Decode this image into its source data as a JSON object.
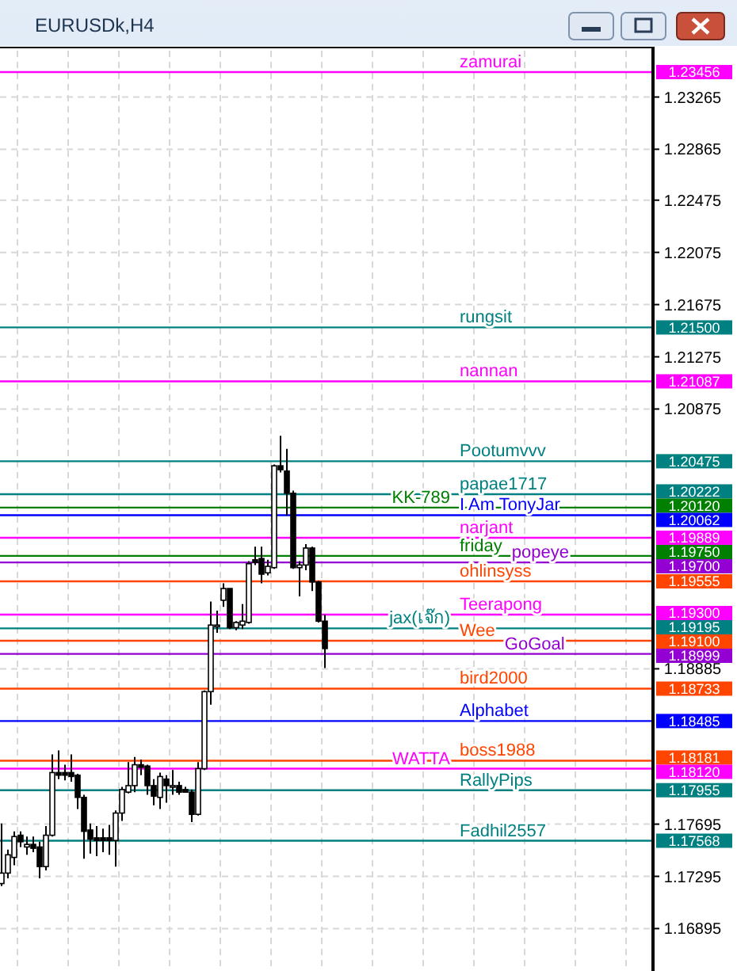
{
  "chart_data": {
    "type": "candlestick",
    "title": "EURUSDk,H4",
    "color": "#000000",
    "grid": true,
    "tick_labels": "y",
    "categories": [
      null,
      null,
      null,
      null,
      null,
      null,
      null,
      null,
      null,
      null,
      null,
      null,
      null,
      null,
      null,
      null,
      null,
      null,
      null,
      null,
      null,
      null,
      null,
      null,
      null,
      null,
      null,
      null,
      null,
      null,
      null,
      null,
      null,
      null,
      null,
      null,
      null,
      null,
      null,
      null,
      null,
      null,
      null,
      null,
      null,
      null,
      null,
      null,
      null,
      null,
      null,
      null,
      null,
      null,
      null,
      null,
      null,
      null,
      null,
      null,
      null,
      null,
      null,
      null,
      null,
      null,
      null,
      null,
      null,
      null,
      null,
      null,
      null,
      null,
      null,
      null,
      null,
      null,
      null,
      null,
      null,
      null,
      null,
      null,
      null,
      null,
      null,
      null,
      null,
      null,
      null,
      null,
      null,
      null,
      null,
      null,
      null,
      null,
      null,
      null,
      null,
      null,
      null
    ],
    "ohlc": [
      [
        1.1724,
        1.177,
        1.1722,
        1.1732
      ],
      [
        1.1732,
        1.175,
        1.1728,
        1.1746
      ],
      [
        1.1744,
        1.1764,
        1.1738,
        1.176
      ],
      [
        1.1761,
        1.1764,
        1.1752,
        1.1756
      ],
      [
        1.1752,
        1.176,
        1.1746,
        1.1754
      ],
      [
        1.1754,
        1.176,
        1.1748,
        1.1751
      ],
      [
        1.1752,
        1.1756,
        1.1728,
        1.1737
      ],
      [
        1.1737,
        1.1768,
        1.1734,
        1.1761
      ],
      [
        1.1761,
        1.1823,
        1.176,
        1.1809
      ],
      [
        1.1809,
        1.1826,
        1.1804,
        1.1807
      ],
      [
        1.1809,
        1.1815,
        1.1803,
        1.1807
      ],
      [
        1.1809,
        1.1823,
        1.1802,
        1.1806
      ],
      [
        1.1807,
        1.1808,
        1.1781,
        1.179
      ],
      [
        1.179,
        1.1792,
        1.1743,
        1.1764
      ],
      [
        1.1765,
        1.177,
        1.1747,
        1.1758
      ],
      [
        1.1759,
        1.1768,
        1.1745,
        1.1757
      ],
      [
        1.1759,
        1.1766,
        1.1748,
        1.1757
      ],
      [
        1.1759,
        1.1769,
        1.1746,
        1.1757
      ],
      [
        1.1757,
        1.178,
        1.1737,
        1.1778
      ],
      [
        1.1778,
        1.1798,
        1.1772,
        1.1796
      ],
      [
        1.1794,
        1.1817,
        1.1793,
        1.1799
      ],
      [
        1.1799,
        1.1821,
        1.1794,
        1.1815
      ],
      [
        1.1815,
        1.1819,
        1.1807,
        1.1813
      ],
      [
        1.1814,
        1.1815,
        1.1792,
        1.1799
      ],
      [
        1.1799,
        1.1804,
        1.1784,
        1.1791
      ],
      [
        1.179,
        1.1809,
        1.1781,
        1.1806
      ],
      [
        1.1804,
        1.1807,
        1.1786,
        1.1799
      ],
      [
        1.1799,
        1.1811,
        1.1792,
        1.1799
      ],
      [
        1.1799,
        1.1802,
        1.1792,
        1.1794
      ],
      [
        1.1796,
        1.1798,
        1.1794,
        1.1794
      ],
      [
        1.1794,
        1.1796,
        1.1771,
        1.1777
      ],
      [
        1.1777,
        1.1817,
        1.1776,
        1.1812
      ],
      [
        1.1812,
        1.1872,
        1.1811,
        1.1871
      ],
      [
        1.1871,
        1.194,
        1.1861,
        1.1922
      ],
      [
        1.1922,
        1.1933,
        1.1916,
        1.1922
      ],
      [
        1.1941,
        1.1954,
        1.1936,
        1.195
      ],
      [
        1.195,
        1.195,
        1.1919,
        1.192
      ],
      [
        1.192,
        1.1925,
        1.1918,
        1.1924
      ],
      [
        1.1922,
        1.1938,
        1.1919,
        1.1925
      ],
      [
        1.1924,
        1.1971,
        1.1923,
        1.1969
      ],
      [
        1.1972,
        1.1982,
        1.1968,
        1.197
      ],
      [
        1.1973,
        1.1982,
        1.1954,
        1.1961
      ],
      [
        1.1962,
        1.1972,
        1.196,
        1.1967
      ],
      [
        1.1966,
        1.2045,
        1.1965,
        1.2044
      ],
      [
        1.2044,
        1.2067,
        1.2039,
        1.2041
      ],
      [
        1.204,
        1.2057,
        1.2006,
        1.2023
      ],
      [
        1.2023,
        1.2025,
        1.1965,
        1.1966
      ],
      [
        1.1966,
        1.1971,
        1.1944,
        1.1968
      ],
      [
        1.1968,
        1.1984,
        1.1964,
        1.1981
      ],
      [
        1.1981,
        1.1982,
        1.1948,
        1.1955
      ],
      [
        1.1955,
        1.1956,
        1.1924,
        1.1925
      ],
      [
        1.1925,
        1.193,
        1.1889,
        1.1904
      ],
      null,
      null,
      null,
      null,
      null,
      null,
      null,
      null,
      null,
      null,
      null,
      null,
      null,
      null,
      null,
      null,
      null,
      null,
      null,
      null,
      null,
      null,
      null,
      null,
      null,
      null,
      null,
      null,
      null,
      null,
      null,
      null,
      null,
      null,
      null,
      null,
      null,
      null,
      null,
      null,
      null,
      null,
      null,
      null,
      null,
      null,
      null,
      null,
      null,
      null,
      null
    ],
    "ylim": [
      1.1657,
      1.2362
    ],
    "yticks": [
      1.16895,
      1.17295,
      1.17695,
      1.18885,
      1.20875,
      1.21275,
      1.21675,
      1.22075,
      1.22475,
      1.22865,
      1.23265
    ],
    "annotations": [
      "1.23456",
      "1.21500",
      "1.21087",
      "1.20475",
      "1.20222",
      "1.20120",
      "1.20062",
      "1.19889",
      "1.19750",
      "1.19700",
      "1.19555",
      "1.19300",
      "1.19195",
      "1.19100",
      "1.18999",
      "1.18733",
      "1.18485",
      "1.18181",
      "1.18120",
      "1.17955",
      "1.17568"
    ],
    "ref_lines": [
      {
        "axis": "y",
        "value": 1.23456,
        "label": "zamurai",
        "color": "#ff00ff"
      },
      {
        "axis": "y",
        "value": 1.215,
        "label": "rungsit",
        "color": "#008080"
      },
      {
        "axis": "y",
        "value": 1.21087,
        "label": "nannan",
        "color": "#ff00ff"
      },
      {
        "axis": "y",
        "value": 1.20475,
        "label": "Pootumvvv",
        "color": "#008080"
      },
      {
        "axis": "y",
        "value": 1.20222,
        "label": "papae1717",
        "color": "#008080"
      },
      {
        "axis": "y",
        "value": 1.2012,
        "label": "KK-789",
        "color": "#008000"
      },
      {
        "axis": "y",
        "value": 1.20062,
        "label": "I Am TonyJar",
        "color": "#0000ff"
      },
      {
        "axis": "y",
        "value": 1.19889,
        "label": "narjant",
        "color": "#ff00ff"
      },
      {
        "axis": "y",
        "value": 1.1975,
        "label": "friday",
        "color": "#008000"
      },
      {
        "axis": "y",
        "value": 1.197,
        "label": "popeye",
        "color": "#9400d3"
      },
      {
        "axis": "y",
        "value": 1.19555,
        "label": "ohlinsyss",
        "color": "#ff4500"
      },
      {
        "axis": "y",
        "value": 1.193,
        "label": "Teerapong",
        "color": "#ff00ff"
      },
      {
        "axis": "y",
        "value": 1.19195,
        "label": "jax(เจ๊ก)",
        "color": "#008080"
      },
      {
        "axis": "y",
        "value": 1.191,
        "label": "Wee",
        "color": "#ff4500"
      },
      {
        "axis": "y",
        "value": 1.18999,
        "label": "GoGoal",
        "color": "#9400d3"
      },
      {
        "axis": "y",
        "value": 1.18733,
        "label": "bird2000",
        "color": "#ff4500"
      },
      {
        "axis": "y",
        "value": 1.18485,
        "label": "Alphabet",
        "color": "#0000ff"
      },
      {
        "axis": "y",
        "value": 1.18181,
        "label": "boss1988",
        "color": "#ff4500"
      },
      {
        "axis": "y",
        "value": 1.1812,
        "label": "WATTA",
        "color": "#ff00ff"
      },
      {
        "axis": "y",
        "value": 1.17955,
        "label": "RallyPips",
        "color": "#008080"
      },
      {
        "axis": "y",
        "value": 1.17568,
        "label": "Fadhil2557",
        "color": "#008080"
      }
    ]
  }
}
